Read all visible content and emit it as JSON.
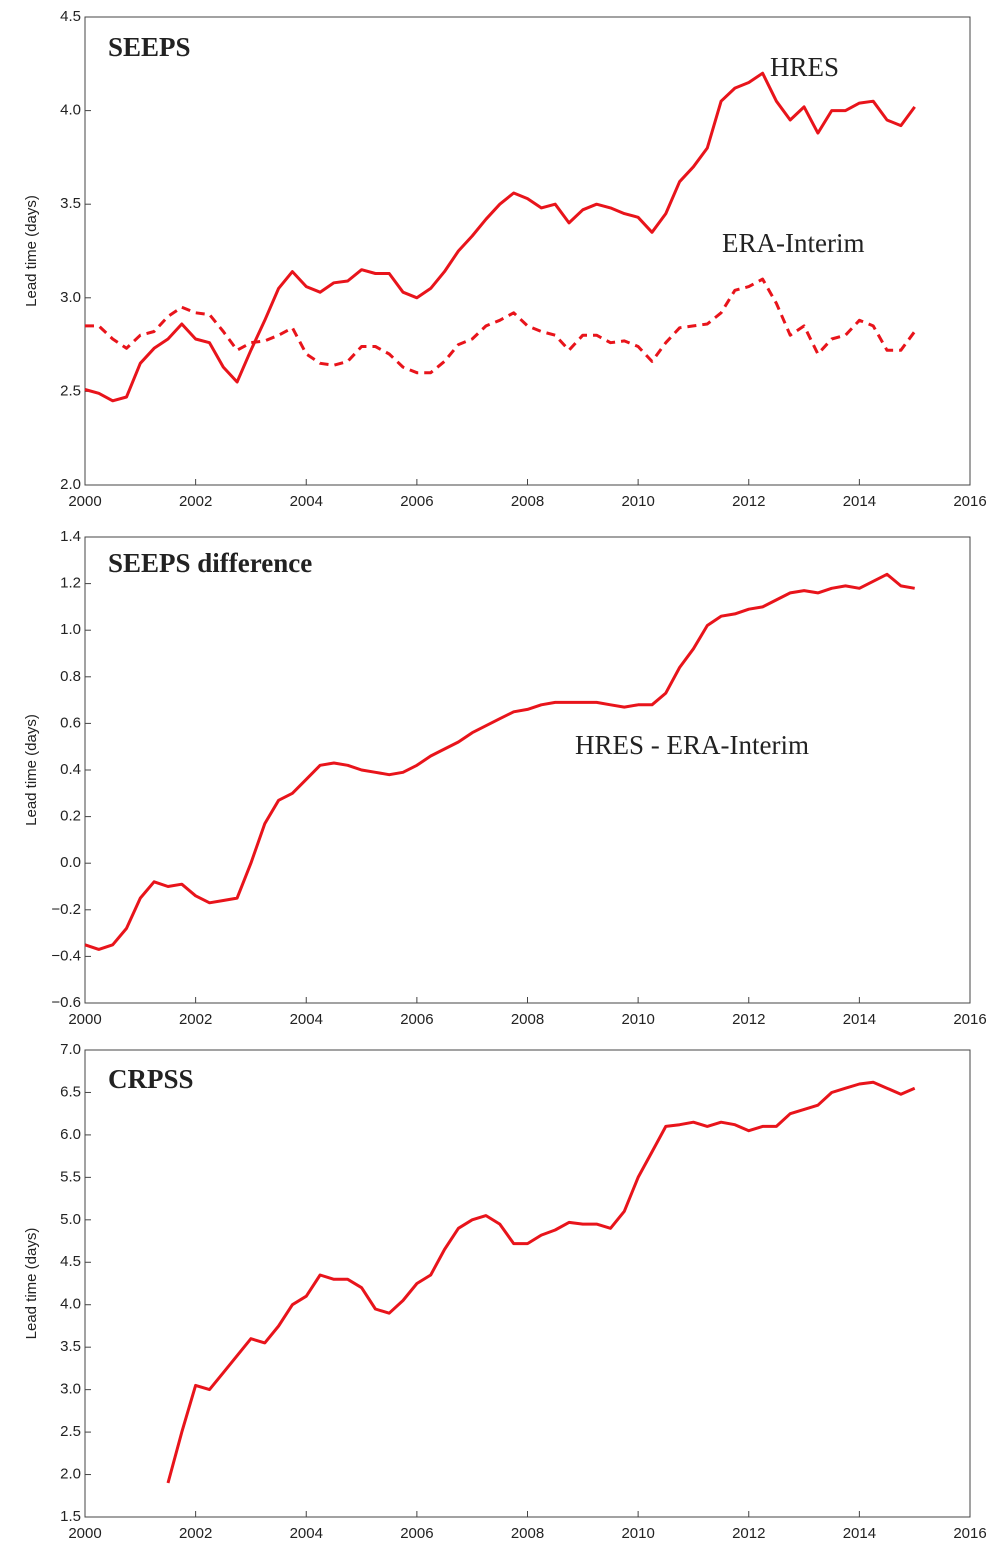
{
  "chart_data": [
    {
      "type": "line",
      "title": "SEEPS",
      "ylabel": "Lead time (days)",
      "x": [
        2000,
        2000.25,
        2000.5,
        2000.75,
        2001,
        2001.25,
        2001.5,
        2001.75,
        2002,
        2002.25,
        2002.5,
        2002.75,
        2003,
        2003.25,
        2003.5,
        2003.75,
        2004,
        2004.25,
        2004.5,
        2004.75,
        2005,
        2005.25,
        2005.5,
        2005.75,
        2006,
        2006.25,
        2006.5,
        2006.75,
        2007,
        2007.25,
        2007.5,
        2007.75,
        2008,
        2008.25,
        2008.5,
        2008.75,
        2009,
        2009.25,
        2009.5,
        2009.75,
        2010,
        2010.25,
        2010.5,
        2010.75,
        2011,
        2011.25,
        2011.5,
        2011.75,
        2012,
        2012.25,
        2012.5,
        2012.75,
        2013,
        2013.25,
        2013.5,
        2013.75,
        2014,
        2014.25,
        2014.5,
        2014.75,
        2015
      ],
      "series": [
        {
          "name": "HRES",
          "color": "#e8141b",
          "dash": false,
          "values": [
            2.51,
            2.49,
            2.45,
            2.47,
            2.65,
            2.73,
            2.78,
            2.86,
            2.78,
            2.76,
            2.63,
            2.55,
            2.72,
            2.88,
            3.05,
            3.14,
            3.06,
            3.03,
            3.08,
            3.09,
            3.15,
            3.13,
            3.13,
            3.03,
            3.0,
            3.05,
            3.14,
            3.25,
            3.33,
            3.42,
            3.5,
            3.56,
            3.53,
            3.48,
            3.5,
            3.4,
            3.47,
            3.5,
            3.48,
            3.45,
            3.43,
            3.35,
            3.45,
            3.62,
            3.7,
            3.8,
            4.05,
            4.12,
            4.15,
            4.2,
            4.05,
            3.95,
            4.02,
            3.88,
            4.0,
            4.0,
            4.04,
            4.05,
            3.95,
            3.92,
            4.02
          ]
        },
        {
          "name": "ERA-Interim",
          "color": "#e8141b",
          "dash": true,
          "values": [
            2.85,
            2.85,
            2.78,
            2.73,
            2.8,
            2.82,
            2.9,
            2.95,
            2.92,
            2.91,
            2.82,
            2.72,
            2.76,
            2.77,
            2.8,
            2.84,
            2.7,
            2.65,
            2.64,
            2.66,
            2.74,
            2.74,
            2.7,
            2.63,
            2.6,
            2.6,
            2.66,
            2.75,
            2.78,
            2.85,
            2.88,
            2.92,
            2.85,
            2.82,
            2.8,
            2.72,
            2.8,
            2.8,
            2.76,
            2.77,
            2.74,
            2.66,
            2.76,
            2.84,
            2.85,
            2.86,
            2.92,
            3.04,
            3.06,
            3.1,
            2.97,
            2.8,
            2.85,
            2.7,
            2.78,
            2.8,
            2.88,
            2.85,
            2.72,
            2.72,
            2.82
          ]
        }
      ],
      "xlim": [
        2000,
        2016
      ],
      "xticks": [
        2000,
        2002,
        2004,
        2006,
        2008,
        2010,
        2012,
        2014,
        2016
      ],
      "ylim": [
        2,
        4.5
      ],
      "yticks": [
        {
          "value": 2,
          "label": "2.0"
        },
        2.5,
        {
          "value": 3,
          "label": "3.0"
        },
        3.5,
        {
          "value": 4,
          "label": "4.0"
        },
        4.5
      ]
    },
    {
      "type": "line",
      "title": "SEEPS difference",
      "ylabel": "Lead time (days)",
      "x": [
        2000,
        2000.25,
        2000.5,
        2000.75,
        2001,
        2001.25,
        2001.5,
        2001.75,
        2002,
        2002.25,
        2002.5,
        2002.75,
        2003,
        2003.25,
        2003.5,
        2003.75,
        2004,
        2004.25,
        2004.5,
        2004.75,
        2005,
        2005.25,
        2005.5,
        2005.75,
        2006,
        2006.25,
        2006.5,
        2006.75,
        2007,
        2007.25,
        2007.5,
        2007.75,
        2008,
        2008.25,
        2008.5,
        2008.75,
        2009,
        2009.25,
        2009.5,
        2009.75,
        2010,
        2010.25,
        2010.5,
        2010.75,
        2011,
        2011.25,
        2011.5,
        2011.75,
        2012,
        2012.25,
        2012.5,
        2012.75,
        2013,
        2013.25,
        2013.5,
        2013.75,
        2014,
        2014.25,
        2014.5,
        2014.75,
        2015
      ],
      "series": [
        {
          "name": "HRES - ERA-Interim",
          "color": "#e8141b",
          "dash": false,
          "values": [
            -0.35,
            -0.37,
            -0.35,
            -0.28,
            -0.15,
            -0.08,
            -0.1,
            -0.09,
            -0.14,
            -0.17,
            -0.16,
            -0.15,
            0.0,
            0.17,
            0.27,
            0.3,
            0.36,
            0.42,
            0.43,
            0.42,
            0.4,
            0.39,
            0.38,
            0.39,
            0.42,
            0.46,
            0.49,
            0.52,
            0.56,
            0.59,
            0.62,
            0.65,
            0.66,
            0.68,
            0.69,
            0.69,
            0.69,
            0.69,
            0.68,
            0.67,
            0.68,
            0.68,
            0.73,
            0.84,
            0.92,
            1.02,
            1.06,
            1.07,
            1.09,
            1.1,
            1.13,
            1.16,
            1.17,
            1.16,
            1.18,
            1.19,
            1.18,
            1.21,
            1.24,
            1.19,
            1.18
          ]
        }
      ],
      "xlim": [
        2000,
        2016
      ],
      "xticks": [
        2000,
        2002,
        2004,
        2006,
        2008,
        2010,
        2012,
        2014,
        2016
      ],
      "ylim": [
        -0.6,
        1.4
      ],
      "yticks": [
        {
          "value": -0.6,
          "label": "−0.6"
        },
        {
          "value": -0.4,
          "label": "−0.4"
        },
        {
          "value": -0.2,
          "label": "−0.2"
        },
        {
          "value": 0,
          "label": "0.0"
        },
        0.2,
        0.4,
        0.6,
        0.8,
        {
          "value": 1,
          "label": "1.0"
        },
        1.2,
        1.4
      ]
    },
    {
      "type": "line",
      "title": "CRPSS",
      "ylabel": "Lead time (days)",
      "x": [
        2001.5,
        2001.75,
        2002,
        2002.25,
        2002.5,
        2002.75,
        2003,
        2003.25,
        2003.5,
        2003.75,
        2004,
        2004.25,
        2004.5,
        2004.75,
        2005,
        2005.25,
        2005.5,
        2005.75,
        2006,
        2006.25,
        2006.5,
        2006.75,
        2007,
        2007.25,
        2007.5,
        2007.75,
        2008,
        2008.25,
        2008.5,
        2008.75,
        2009,
        2009.25,
        2009.5,
        2009.75,
        2010,
        2010.25,
        2010.5,
        2010.75,
        2011,
        2011.25,
        2011.5,
        2011.75,
        2012,
        2012.25,
        2012.5,
        2012.75,
        2013,
        2013.25,
        2013.5,
        2013.75,
        2014,
        2014.25,
        2014.5,
        2014.75,
        2015
      ],
      "series": [
        {
          "color": "#e8141b",
          "dash": false,
          "values": [
            1.9,
            2.5,
            3.05,
            3.0,
            3.2,
            3.4,
            3.6,
            3.55,
            3.75,
            4.0,
            4.1,
            4.35,
            4.3,
            4.3,
            4.2,
            3.95,
            3.9,
            4.05,
            4.25,
            4.35,
            4.65,
            4.9,
            5.0,
            5.05,
            4.95,
            4.72,
            4.72,
            4.82,
            4.88,
            4.97,
            4.95,
            4.95,
            4.9,
            5.1,
            5.5,
            5.8,
            6.1,
            6.12,
            6.15,
            6.1,
            6.15,
            6.12,
            6.05,
            6.1,
            6.1,
            6.25,
            6.3,
            6.35,
            6.5,
            6.55,
            6.6,
            6.62,
            6.55,
            6.48,
            6.55
          ]
        }
      ],
      "xlim": [
        2000,
        2016
      ],
      "xticks": [
        2000,
        2002,
        2004,
        2006,
        2008,
        2010,
        2012,
        2014,
        2016
      ],
      "ylim": [
        1.5,
        7
      ],
      "yticks": [
        1.5,
        {
          "value": 2,
          "label": "2.0"
        },
        2.5,
        {
          "value": 3,
          "label": "3.0"
        },
        3.5,
        {
          "value": 4,
          "label": "4.0"
        },
        4.5,
        {
          "value": 5,
          "label": "5.0"
        },
        5.5,
        {
          "value": 6,
          "label": "6.0"
        },
        6.5,
        {
          "value": 7,
          "label": "7.0"
        }
      ]
    }
  ]
}
